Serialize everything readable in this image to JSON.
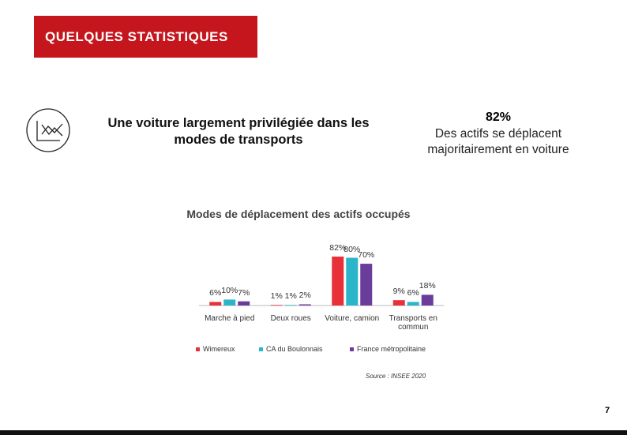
{
  "header": {
    "title": "QUELQUES STATISTIQUES"
  },
  "headline": "Une voiture largement privilégiée dans les modes de transports",
  "stat": {
    "value": "82%",
    "text": "Des actifs se déplacent majoritairement en voiture"
  },
  "chart_data": {
    "type": "bar",
    "title": "Modes de déplacement des actifs occupés",
    "categories": [
      "Marche à pied",
      "Deux roues",
      "Voiture, camion",
      "Transports en commun"
    ],
    "series": [
      {
        "name": "Wimereux",
        "color": "#e8303a",
        "values": [
          6,
          1,
          82,
          9
        ],
        "value_labels": [
          "6%",
          "1%",
          "82%",
          "9%"
        ]
      },
      {
        "name": "CA du Boulonnais",
        "color": "#2bb5c8",
        "values": [
          10,
          1,
          80,
          6
        ],
        "value_labels": [
          "10%",
          "1%",
          "80%",
          "6%"
        ]
      },
      {
        "name": "France métropolitaine",
        "color": "#6a3d9a",
        "values": [
          7,
          2,
          70,
          18
        ],
        "value_labels": [
          "7%",
          "2%",
          "70%",
          "18%"
        ]
      }
    ],
    "legend": "bottom"
  },
  "source": "Source : INSEE 2020",
  "page_number": 7
}
